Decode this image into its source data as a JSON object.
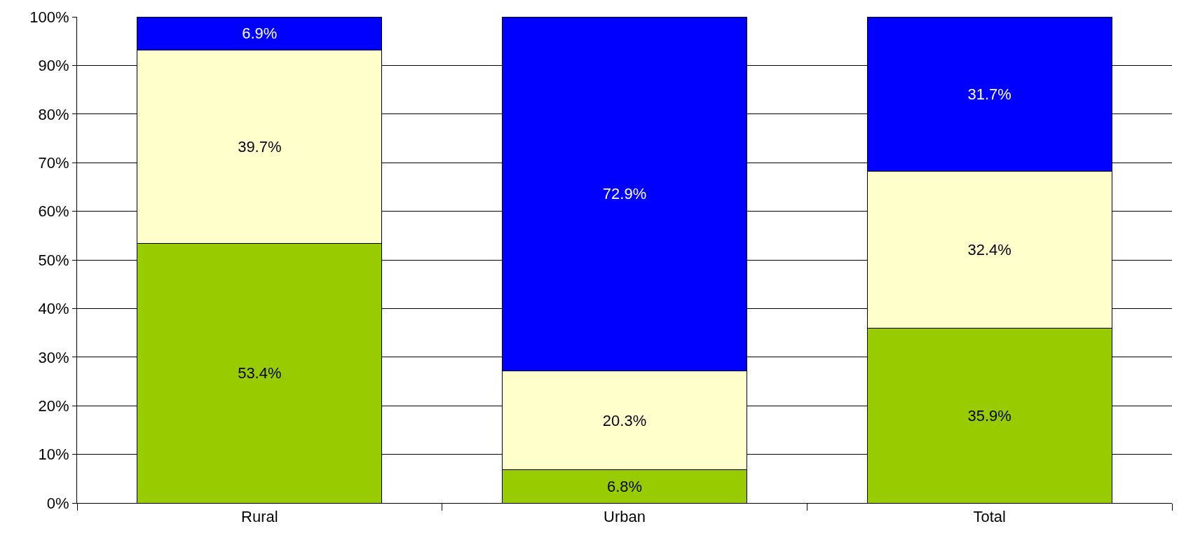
{
  "chart_data": {
    "type": "bar",
    "stacked": true,
    "categories": [
      "Rural",
      "Urban",
      "Total"
    ],
    "series": [
      {
        "color": "#99cc00",
        "values": [
          53.4,
          6.8,
          35.9
        ],
        "value_labels": [
          "53.4%",
          "6.8%",
          "35.9%"
        ]
      },
      {
        "color": "#ffffcc",
        "values": [
          39.7,
          20.3,
          32.4
        ],
        "value_labels": [
          "39.7%",
          "20.3%",
          "32.4%"
        ]
      },
      {
        "color": "#0000ff",
        "values": [
          6.9,
          72.9,
          31.7
        ],
        "value_labels": [
          "6.9%",
          "72.9%",
          "31.7%"
        ]
      }
    ],
    "ylim": [
      0,
      100
    ],
    "yticks": [
      {
        "value": 0,
        "label": "0%"
      },
      {
        "value": 10,
        "label": "10%"
      },
      {
        "value": 20,
        "label": "20%"
      },
      {
        "value": 30,
        "label": "30%"
      },
      {
        "value": 40,
        "label": "40%"
      },
      {
        "value": 50,
        "label": "50%"
      },
      {
        "value": 60,
        "label": "60%"
      },
      {
        "value": 70,
        "label": "70%"
      },
      {
        "value": 80,
        "label": "80%"
      },
      {
        "value": 90,
        "label": "90%"
      },
      {
        "value": 100,
        "label": "100%"
      }
    ],
    "grid": "y"
  }
}
